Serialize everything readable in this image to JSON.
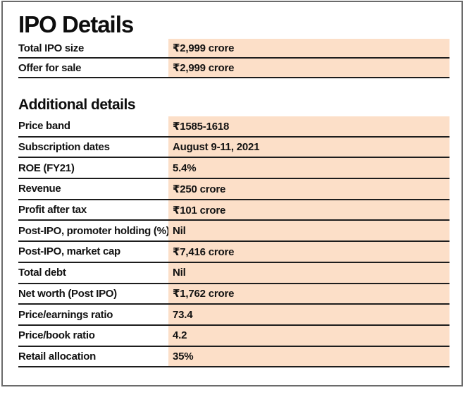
{
  "colors": {
    "cell_bg": "#fcdfc8",
    "rule": "#1d1d1d",
    "frame": "#6b6b6b",
    "text": "#121212"
  },
  "chart_data": {
    "type": "table",
    "title": "IPO Details",
    "sections": [
      {
        "heading": "IPO Details",
        "rows": [
          {
            "label": "Total IPO size",
            "value": "₹2,999 crore"
          },
          {
            "label": "Offer for sale",
            "value": "₹2,999 crore"
          }
        ]
      },
      {
        "heading": "Additional details",
        "rows": [
          {
            "label": "Price band",
            "value": "₹1585-1618"
          },
          {
            "label": "Subscription dates",
            "value": "August 9-11, 2021"
          },
          {
            "label": "ROE (FY21)",
            "value": "5.4%"
          },
          {
            "label": "Revenue",
            "value": "₹250 crore"
          },
          {
            "label": "Profit after tax",
            "value": "₹101 crore"
          },
          {
            "label": "Post-IPO, promoter holding (%)",
            "value": "Nil"
          },
          {
            "label": "Post-IPO, market cap",
            "value": "₹7,416 crore"
          },
          {
            "label": "Total debt",
            "value": "Nil"
          },
          {
            "label": "Net worth (Post IPO)",
            "value": "₹1,762 crore"
          },
          {
            "label": "Price/earnings ratio",
            "value": "73.4"
          },
          {
            "label": "Price/book ratio",
            "value": "4.2"
          },
          {
            "label": "Retail allocation",
            "value": "35%"
          }
        ]
      }
    ]
  }
}
